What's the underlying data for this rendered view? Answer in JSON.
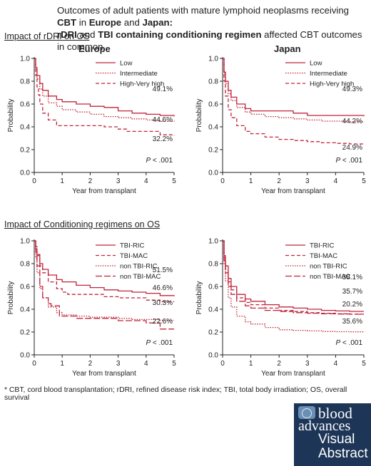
{
  "header": {
    "line1_pre": "Outcomes of adult patients with mature lymphoid neoplasms receiving ",
    "line1_b1": "CBT",
    "line1_mid1": " in ",
    "line1_b2": "Europe",
    "line1_mid2": " and ",
    "line1_b3": "Japan:",
    "line2_b1": "rDRI",
    "line2_mid1": " and ",
    "line2_b2": "TBI containing conditioning regimen",
    "line2_post": " affected CBT outcomes in common."
  },
  "sections": {
    "rdri_title": "Impact of rDRI on OS",
    "cond_title": "Impact of Conditioning regimens on OS"
  },
  "panel_titles": {
    "europe": "Europe",
    "japan": "Japan"
  },
  "footnote": "* CBT, cord blood transplantation; rDRI, refined disease risk index; TBI, total body irradiation; OS, overall survival",
  "logo": {
    "line1": "blood",
    "line2": "advances",
    "line3": "Visual",
    "line4": "Abstract"
  },
  "colors": {
    "series": "#c0243a",
    "axis": "#222222",
    "logo_bg": "#1d3557"
  },
  "chart_data": [
    {
      "type": "line",
      "title": "Europe",
      "xlabel": "Year from transplant",
      "ylabel": "Probability",
      "xlim": [
        0,
        5
      ],
      "ylim": [
        0,
        1.0
      ],
      "xticks": [
        0,
        1,
        2,
        3,
        4,
        5
      ],
      "yticks": [
        0.0,
        0.2,
        0.4,
        0.6,
        0.8,
        1.0
      ],
      "legend_position": "top-right",
      "annotation": "P < .001",
      "series": [
        {
          "name": "Low",
          "style": "solid",
          "end_label": "49.1%",
          "x": [
            0,
            0.05,
            0.1,
            0.2,
            0.3,
            0.5,
            0.8,
            1.0,
            1.5,
            2.0,
            2.5,
            3.0,
            3.5,
            4.0,
            4.5,
            5.0
          ],
          "y": [
            1.0,
            0.92,
            0.85,
            0.78,
            0.72,
            0.67,
            0.64,
            0.62,
            0.6,
            0.58,
            0.57,
            0.54,
            0.52,
            0.51,
            0.5,
            0.491
          ]
        },
        {
          "name": "Intermediate",
          "style": "dotted",
          "end_label": "44.6%",
          "x": [
            0,
            0.05,
            0.1,
            0.2,
            0.3,
            0.5,
            0.8,
            1.0,
            1.5,
            2.0,
            2.5,
            3.0,
            3.5,
            4.0,
            4.5,
            5.0
          ],
          "y": [
            1.0,
            0.9,
            0.82,
            0.73,
            0.67,
            0.61,
            0.58,
            0.55,
            0.53,
            0.51,
            0.49,
            0.48,
            0.47,
            0.46,
            0.45,
            0.446
          ]
        },
        {
          "name": "High-Very high",
          "style": "dashed",
          "end_label": "32.2%",
          "x": [
            0,
            0.05,
            0.1,
            0.15,
            0.2,
            0.3,
            0.5,
            0.8,
            1.0,
            1.5,
            2.0,
            2.5,
            3.0,
            3.3,
            4.0,
            4.5,
            5.0
          ],
          "y": [
            1.0,
            0.85,
            0.75,
            0.68,
            0.6,
            0.52,
            0.46,
            0.41,
            0.41,
            0.41,
            0.41,
            0.4,
            0.38,
            0.36,
            0.36,
            0.33,
            0.322
          ]
        }
      ]
    },
    {
      "type": "line",
      "title": "Japan",
      "xlabel": "Year from transplant",
      "ylabel": "Probability",
      "xlim": [
        0,
        5
      ],
      "ylim": [
        0,
        1.0
      ],
      "xticks": [
        0,
        1,
        2,
        3,
        4,
        5
      ],
      "yticks": [
        0.0,
        0.2,
        0.4,
        0.6,
        0.8,
        1.0
      ],
      "legend_position": "top-right",
      "annotation": "P < .001",
      "series": [
        {
          "name": "Low",
          "style": "solid",
          "end_label": "49.3%",
          "x": [
            0,
            0.05,
            0.1,
            0.2,
            0.3,
            0.5,
            0.8,
            1.0,
            1.5,
            2.0,
            2.5,
            3.0,
            3.5,
            4.0,
            4.5,
            5.0
          ],
          "y": [
            1.0,
            0.88,
            0.8,
            0.72,
            0.66,
            0.6,
            0.56,
            0.54,
            0.54,
            0.54,
            0.52,
            0.5,
            0.5,
            0.5,
            0.5,
            0.493
          ]
        },
        {
          "name": "Intermediate",
          "style": "dotted",
          "end_label": "44.2%",
          "x": [
            0,
            0.05,
            0.1,
            0.2,
            0.3,
            0.5,
            0.8,
            1.0,
            1.5,
            2.0,
            2.5,
            3.0,
            3.5,
            4.0,
            4.5,
            5.0
          ],
          "y": [
            1.0,
            0.87,
            0.78,
            0.69,
            0.63,
            0.57,
            0.53,
            0.51,
            0.49,
            0.48,
            0.47,
            0.46,
            0.45,
            0.45,
            0.445,
            0.442
          ]
        },
        {
          "name": "High-Very high",
          "style": "dashed",
          "end_label": "24.9%",
          "x": [
            0,
            0.05,
            0.1,
            0.2,
            0.3,
            0.5,
            0.8,
            1.0,
            1.5,
            2.0,
            2.5,
            3.0,
            3.5,
            4.0,
            4.5,
            5.0
          ],
          "y": [
            1.0,
            0.8,
            0.67,
            0.55,
            0.48,
            0.41,
            0.36,
            0.34,
            0.31,
            0.29,
            0.28,
            0.27,
            0.26,
            0.255,
            0.25,
            0.249
          ]
        }
      ]
    },
    {
      "type": "line",
      "title": "Europe",
      "xlabel": "Year from transplant",
      "ylabel": "Probability",
      "xlim": [
        0,
        5
      ],
      "ylim": [
        0,
        1.0
      ],
      "xticks": [
        0,
        1,
        2,
        3,
        4,
        5
      ],
      "yticks": [
        0.0,
        0.2,
        0.4,
        0.6,
        0.8,
        1.0
      ],
      "legend_position": "top-right",
      "annotation": "P < .001",
      "series": [
        {
          "name": "TBI-RIC",
          "style": "solid",
          "end_label": "51.5%",
          "x": [
            0,
            0.05,
            0.1,
            0.2,
            0.3,
            0.5,
            0.8,
            1.0,
            1.5,
            2.0,
            2.5,
            3.0,
            3.5,
            4.0,
            4.5,
            5.0
          ],
          "y": [
            1.0,
            0.93,
            0.87,
            0.8,
            0.75,
            0.7,
            0.66,
            0.64,
            0.61,
            0.59,
            0.57,
            0.56,
            0.55,
            0.54,
            0.52,
            0.515
          ]
        },
        {
          "name": "TBI-MAC",
          "style": "dashed",
          "end_label": "46.6%",
          "x": [
            0,
            0.05,
            0.1,
            0.2,
            0.3,
            0.5,
            0.8,
            1.0,
            1.2,
            1.5,
            2.0,
            2.5,
            3.0,
            3.5,
            4.0,
            4.5,
            5.0
          ],
          "y": [
            1.0,
            0.95,
            0.88,
            0.78,
            0.72,
            0.64,
            0.58,
            0.55,
            0.53,
            0.53,
            0.53,
            0.51,
            0.5,
            0.5,
            0.48,
            0.466,
            0.466
          ]
        },
        {
          "name": "non TBI-RIC",
          "style": "dotted",
          "end_label": "30.3%",
          "x": [
            0,
            0.05,
            0.1,
            0.2,
            0.3,
            0.5,
            0.8,
            1.0,
            1.5,
            2.0,
            2.5,
            3.0,
            3.5,
            4.0,
            4.5,
            5.0
          ],
          "y": [
            1.0,
            0.85,
            0.72,
            0.58,
            0.5,
            0.42,
            0.37,
            0.35,
            0.34,
            0.33,
            0.33,
            0.32,
            0.31,
            0.31,
            0.303,
            0.303
          ]
        },
        {
          "name": "non TBI-MAC",
          "style": "longdash",
          "end_label": "22.6%",
          "x": [
            0,
            0.05,
            0.1,
            0.2,
            0.3,
            0.5,
            0.6,
            0.9,
            1.0,
            1.5,
            2.0,
            2.5,
            3.0,
            3.5,
            4.0,
            4.5,
            5.0
          ],
          "y": [
            1.0,
            0.9,
            0.78,
            0.6,
            0.5,
            0.45,
            0.43,
            0.34,
            0.34,
            0.32,
            0.32,
            0.32,
            0.3,
            0.3,
            0.28,
            0.226,
            0.226
          ]
        }
      ]
    },
    {
      "type": "line",
      "title": "Japan",
      "xlabel": "Year from transplant",
      "ylabel": "Probability",
      "xlim": [
        0,
        5
      ],
      "ylim": [
        0,
        1.0
      ],
      "xticks": [
        0,
        1,
        2,
        3,
        4,
        5
      ],
      "yticks": [
        0.0,
        0.2,
        0.4,
        0.6,
        0.8,
        1.0
      ],
      "legend_position": "top-right",
      "annotation": "P < .001",
      "series": [
        {
          "name": "TBI-RIC",
          "style": "solid",
          "end_label": "38.1%",
          "x": [
            0,
            0.05,
            0.1,
            0.2,
            0.3,
            0.5,
            0.8,
            1.0,
            1.5,
            2.0,
            2.5,
            3.0,
            3.5,
            4.0,
            4.5,
            5.0
          ],
          "y": [
            1.0,
            0.87,
            0.78,
            0.67,
            0.6,
            0.53,
            0.49,
            0.47,
            0.44,
            0.42,
            0.41,
            0.4,
            0.39,
            0.385,
            0.381,
            0.381
          ]
        },
        {
          "name": "TBI-MAC",
          "style": "dashed",
          "end_label": "35.7%",
          "x": [
            0,
            0.05,
            0.1,
            0.2,
            0.3,
            0.5,
            0.8,
            1.0,
            1.5,
            2.0,
            2.5,
            3.0,
            3.5,
            4.0,
            4.5,
            5.0
          ],
          "y": [
            1.0,
            0.85,
            0.75,
            0.64,
            0.57,
            0.5,
            0.46,
            0.44,
            0.41,
            0.39,
            0.38,
            0.37,
            0.365,
            0.36,
            0.357,
            0.357
          ]
        },
        {
          "name": "non TBI-RIC",
          "style": "dotted",
          "end_label": "20.2%",
          "x": [
            0,
            0.05,
            0.1,
            0.2,
            0.3,
            0.5,
            0.8,
            1.0,
            1.5,
            2.0,
            2.5,
            3.0,
            3.5,
            4.0,
            4.5,
            5.0
          ],
          "y": [
            1.0,
            0.8,
            0.65,
            0.5,
            0.42,
            0.34,
            0.29,
            0.27,
            0.24,
            0.22,
            0.215,
            0.21,
            0.205,
            0.203,
            0.202,
            0.202
          ]
        },
        {
          "name": "non TBI-MAC",
          "style": "longdash",
          "end_label": "35.6%",
          "x": [
            0,
            0.05,
            0.1,
            0.2,
            0.3,
            0.5,
            0.8,
            1.0,
            1.5,
            2.0,
            2.5,
            3.0,
            3.5,
            4.0,
            4.5,
            5.0
          ],
          "y": [
            1.0,
            0.83,
            0.72,
            0.6,
            0.53,
            0.47,
            0.43,
            0.41,
            0.39,
            0.38,
            0.37,
            0.365,
            0.36,
            0.358,
            0.356,
            0.356
          ]
        }
      ]
    }
  ]
}
